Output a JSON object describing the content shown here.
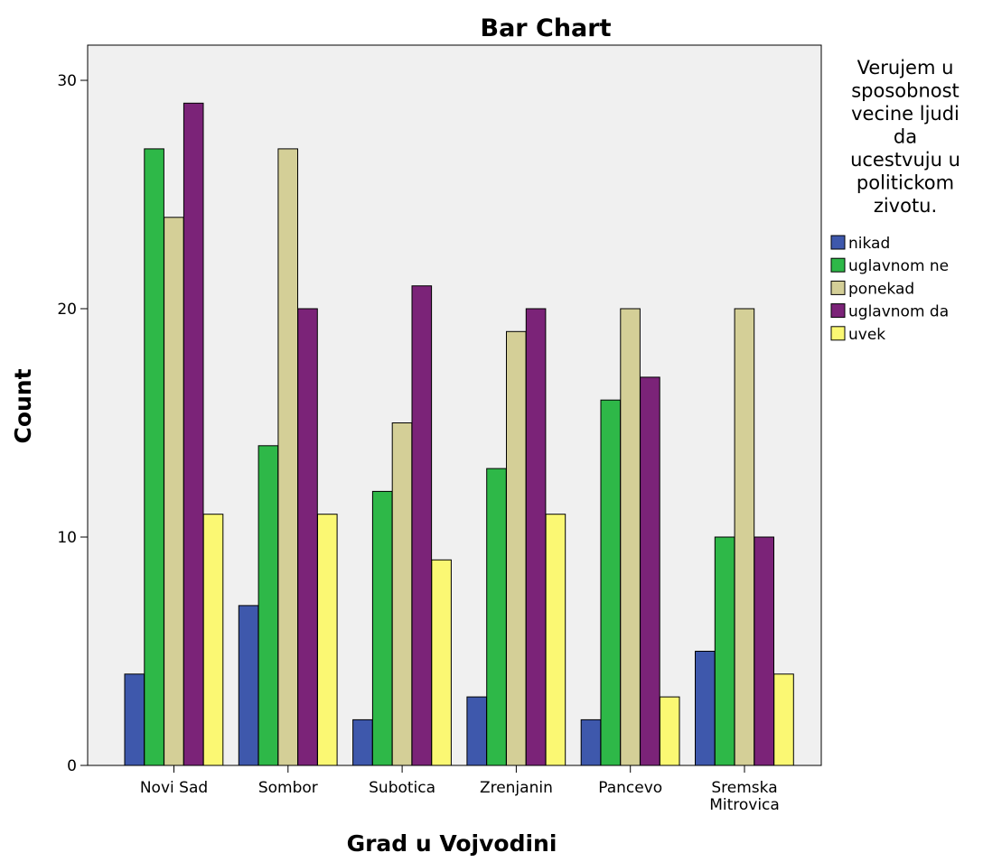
{
  "chart_data": {
    "type": "bar",
    "title": "Bar Chart",
    "xlabel": "Grad u Vojvodini",
    "ylabel": "Count",
    "ylim": [
      0,
      30
    ],
    "yticks": [
      "0",
      "10",
      "20",
      "30"
    ],
    "grid": false,
    "legend_placement": "right",
    "legend_title": [
      "Verujem u",
      "sposobnost",
      "vecine ljudi",
      "da",
      "ucestvuju u",
      "politickom",
      "zivotu."
    ],
    "categories": [
      [
        "Novi Sad"
      ],
      [
        "Sombor"
      ],
      [
        "Subotica"
      ],
      [
        "Zrenjanin"
      ],
      [
        "Pancevo"
      ],
      [
        "Sremska",
        "Mitrovica"
      ]
    ],
    "series": [
      {
        "name": "nikad",
        "color": "#3e58ac",
        "values": [
          4,
          7,
          2,
          3,
          2,
          5
        ]
      },
      {
        "name": "uglavnom ne",
        "color": "#2eb848",
        "values": [
          27,
          14,
          12,
          13,
          16,
          10
        ]
      },
      {
        "name": "ponekad",
        "color": "#d4cf97",
        "values": [
          24,
          27,
          15,
          19,
          20,
          20
        ]
      },
      {
        "name": "uglavnom da",
        "color": "#7b2378",
        "values": [
          29,
          20,
          21,
          20,
          17,
          10
        ]
      },
      {
        "name": "uvek",
        "color": "#fbf873",
        "values": [
          11,
          11,
          9,
          11,
          3,
          4
        ]
      }
    ],
    "plot_background": "#f0f0f0"
  }
}
